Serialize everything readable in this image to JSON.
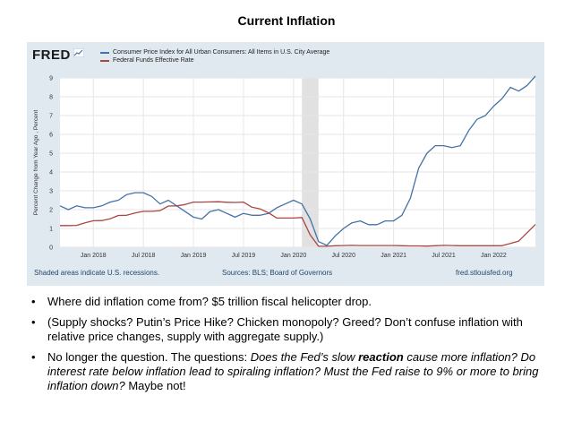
{
  "slide": {
    "title": "Current Inflation"
  },
  "fred": {
    "logo_text": "FRED",
    "source": "Sources: BLS; Board of Governors",
    "url": "fred.stlouisfed.org",
    "recession_note": "Shaded areas indicate U.S. recessions."
  },
  "bullets": [
    [
      "Where did inflation come from? $5 trillion fiscal helicopter drop."
    ],
    [
      "(Supply shocks? Putin’s Price Hike? Chicken monopoly? Greed? Don’t confuse inflation with relative price changes, supply with aggregate supply.)"
    ],
    [
      "No longer the question. The questions: ",
      "Does the Fed’s slow ",
      "reaction",
      " cause more inflation? Do interest rate below inflation lead to spiraling inflation? Must the Fed raise to 9% or more to bring inflation down?",
      " Maybe not!"
    ]
  ],
  "chart_data": {
    "type": "line",
    "title": "",
    "xlabel": "",
    "ylabel": "Percent Change from Year Ago , Percent",
    "ylim": [
      0,
      9
    ],
    "yticks": [
      0,
      1,
      2,
      3,
      4,
      5,
      6,
      7,
      8,
      9
    ],
    "xlim": [
      "2017-09",
      "2022-06"
    ],
    "xticks": [
      {
        "x": "2018-01",
        "label": "Jan 2018"
      },
      {
        "x": "2018-07",
        "label": "Jul 2018"
      },
      {
        "x": "2019-01",
        "label": "Jan 2019"
      },
      {
        "x": "2019-07",
        "label": "Jul 2019"
      },
      {
        "x": "2020-01",
        "label": "Jan 2020"
      },
      {
        "x": "2020-07",
        "label": "Jul 2020"
      },
      {
        "x": "2021-01",
        "label": "Jan 2021"
      },
      {
        "x": "2021-07",
        "label": "Jul 2021"
      },
      {
        "x": "2022-01",
        "label": "Jan 2022"
      }
    ],
    "grid": true,
    "recession": {
      "start": "2020-02",
      "end": "2020-04"
    },
    "x": [
      "2017-09",
      "2017-10",
      "2017-11",
      "2017-12",
      "2018-01",
      "2018-02",
      "2018-03",
      "2018-04",
      "2018-05",
      "2018-06",
      "2018-07",
      "2018-08",
      "2018-09",
      "2018-10",
      "2018-11",
      "2018-12",
      "2019-01",
      "2019-02",
      "2019-03",
      "2019-04",
      "2019-05",
      "2019-06",
      "2019-07",
      "2019-08",
      "2019-09",
      "2019-10",
      "2019-11",
      "2019-12",
      "2020-01",
      "2020-02",
      "2020-03",
      "2020-04",
      "2020-05",
      "2020-06",
      "2020-07",
      "2020-08",
      "2020-09",
      "2020-10",
      "2020-11",
      "2020-12",
      "2021-01",
      "2021-02",
      "2021-03",
      "2021-04",
      "2021-05",
      "2021-06",
      "2021-07",
      "2021-08",
      "2021-09",
      "2021-10",
      "2021-11",
      "2021-12",
      "2022-01",
      "2022-02",
      "2022-03",
      "2022-04",
      "2022-05",
      "2022-06"
    ],
    "series": [
      {
        "name": "Consumer Price Index for All Urban Consumers: All Items in U.S. City Average",
        "color": "#4572a7",
        "values": [
          2.2,
          2.0,
          2.2,
          2.1,
          2.1,
          2.2,
          2.4,
          2.5,
          2.8,
          2.9,
          2.9,
          2.7,
          2.3,
          2.5,
          2.2,
          1.9,
          1.6,
          1.5,
          1.9,
          2.0,
          1.8,
          1.6,
          1.8,
          1.7,
          1.7,
          1.8,
          2.1,
          2.3,
          2.5,
          2.3,
          1.5,
          0.3,
          0.1,
          0.6,
          1.0,
          1.3,
          1.4,
          1.2,
          1.2,
          1.4,
          1.4,
          1.7,
          2.6,
          4.2,
          5.0,
          5.4,
          5.4,
          5.3,
          5.4,
          6.2,
          6.8,
          7.0,
          7.5,
          7.9,
          8.5,
          8.3,
          8.6,
          9.1
        ]
      },
      {
        "name": "Federal Funds Effective Rate",
        "color": "#aa4643",
        "values": [
          1.15,
          1.15,
          1.16,
          1.3,
          1.41,
          1.42,
          1.51,
          1.69,
          1.7,
          1.82,
          1.91,
          1.91,
          1.95,
          2.19,
          2.2,
          2.27,
          2.4,
          2.4,
          2.41,
          2.42,
          2.39,
          2.38,
          2.4,
          2.13,
          2.04,
          1.83,
          1.55,
          1.55,
          1.55,
          1.58,
          0.65,
          0.05,
          0.05,
          0.08,
          0.09,
          0.1,
          0.09,
          0.09,
          0.09,
          0.09,
          0.09,
          0.08,
          0.07,
          0.07,
          0.06,
          0.08,
          0.1,
          0.09,
          0.08,
          0.08,
          0.08,
          0.08,
          0.08,
          0.08,
          0.2,
          0.33,
          0.77,
          1.21
        ]
      }
    ]
  }
}
